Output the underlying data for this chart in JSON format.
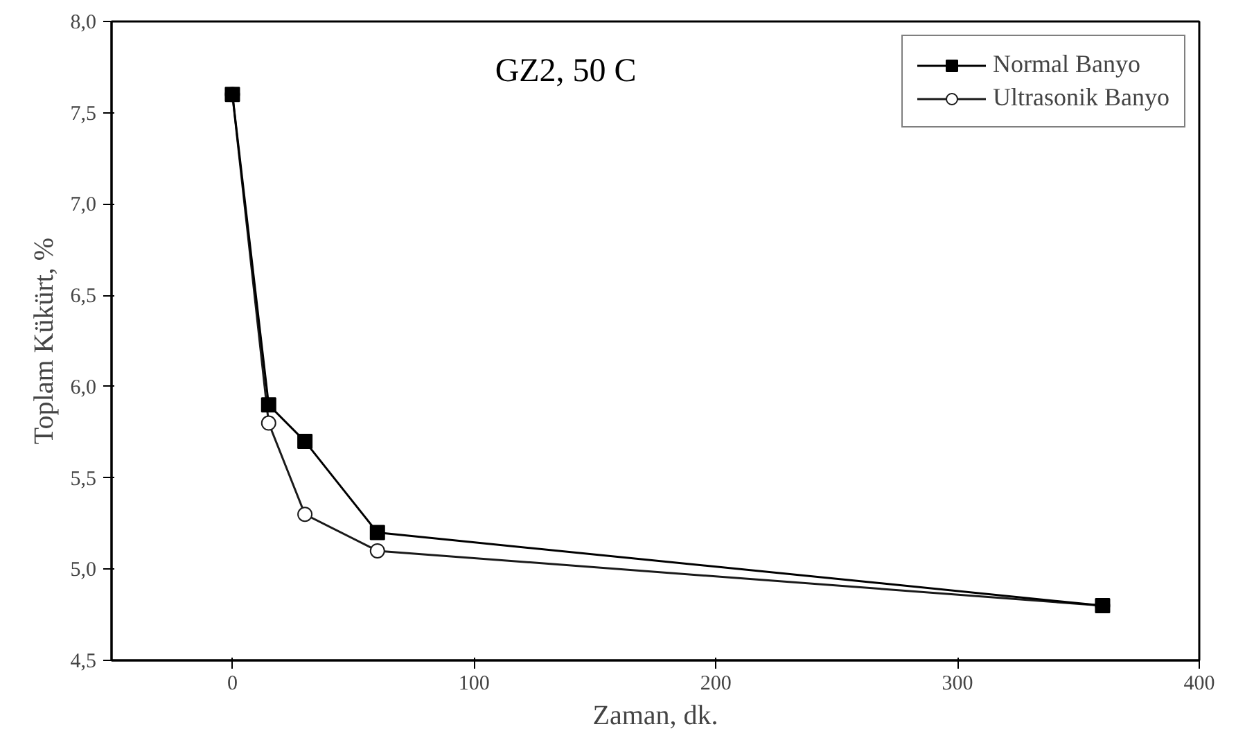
{
  "chart_data": {
    "type": "line",
    "title": "GZ2, 50 C",
    "xlabel": "Zaman, dk.",
    "ylabel": "Toplam Kükürt, %",
    "x": [
      0,
      15,
      30,
      60,
      360
    ],
    "series": [
      {
        "name": "Normal Banyo",
        "color": "#000000",
        "marker": "square",
        "values": [
          7.6,
          5.9,
          5.7,
          5.2,
          4.8
        ]
      },
      {
        "name": "Ultrasonik Banyo",
        "color": "#1a1a1a",
        "marker": "circle",
        "values": [
          7.6,
          5.8,
          5.3,
          5.1,
          4.8
        ]
      }
    ],
    "xlim": [
      -50,
      400
    ],
    "xticks": [
      0,
      100,
      200,
      300,
      400
    ],
    "ylim": [
      4.5,
      8.0
    ],
    "yticks": [
      {
        "value": 4.5,
        "label": "4,5"
      },
      {
        "value": 5.0,
        "label": "5,0"
      },
      {
        "value": 5.5,
        "label": "5,5"
      },
      {
        "value": 6.0,
        "label": "6,0"
      },
      {
        "value": 6.5,
        "label": "6,5"
      },
      {
        "value": 7.0,
        "label": "7,0"
      },
      {
        "value": 7.5,
        "label": "7,5"
      },
      {
        "value": 8.0,
        "label": "8,0"
      }
    ],
    "grid": false,
    "legend": "top right",
    "line_style": "solid"
  }
}
